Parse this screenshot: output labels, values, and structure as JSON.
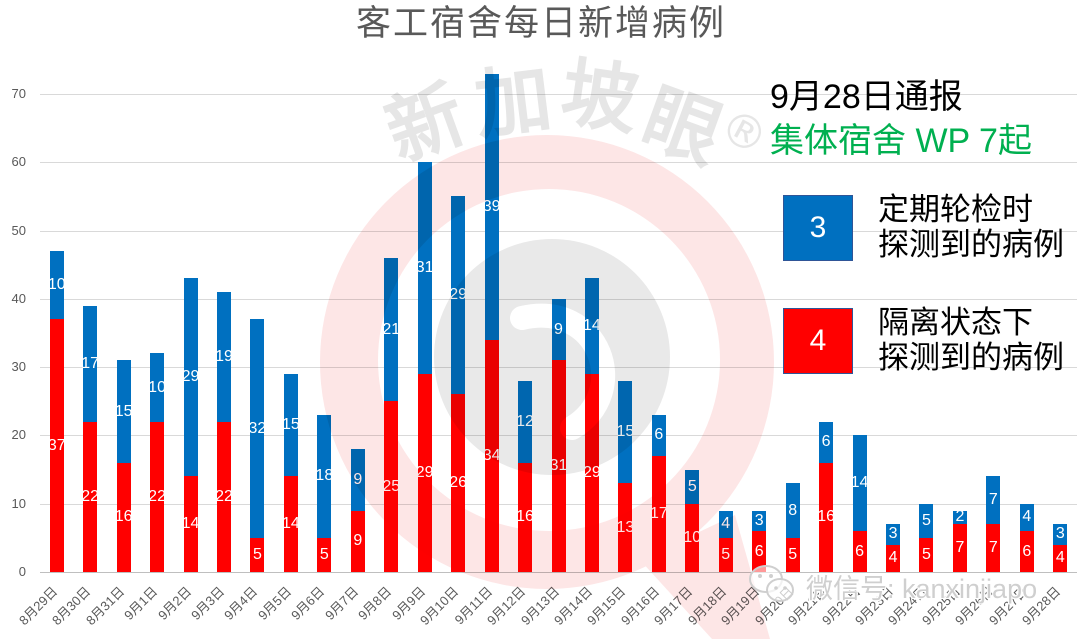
{
  "title": "客工宿舍每日新增病例",
  "annotation": {
    "report_date": "9月28日通报",
    "dorm_summary": "集体宿舍 WP 7起",
    "dorm_summary_color": "#00B050"
  },
  "legend": [
    {
      "count": "3",
      "line1": "定期轮检时",
      "line2": "探测到的病例",
      "color": "#0070C0"
    },
    {
      "count": "4",
      "line1": "隔离状态下",
      "line2": "探测到的病例",
      "color": "#FF0000"
    }
  ],
  "watermark": {
    "brand_chars": [
      "新",
      "加",
      "坡",
      "眼"
    ],
    "registered": "®",
    "wechat_label": "微信号: kanxinjiapo"
  },
  "chart_data": {
    "type": "bar",
    "stacked": true,
    "title": "客工宿舍每日新增病例",
    "xlabel": "",
    "ylabel": "",
    "ylim": [
      0,
      70
    ],
    "yticks": [
      0,
      10,
      20,
      30,
      40,
      50,
      60,
      70
    ],
    "grid": true,
    "legend_position": "right",
    "categories": [
      "8月29日",
      "8月30日",
      "8月31日",
      "9月1日",
      "9月2日",
      "9月3日",
      "9月4日",
      "9月5日",
      "9月6日",
      "9月7日",
      "9月8日",
      "9月9日",
      "9月10日",
      "9月11日",
      "9月12日",
      "9月13日",
      "9月14日",
      "9月15日",
      "9月16日",
      "9月17日",
      "9月18日",
      "9月19日",
      "9月20日",
      "9月21日",
      "9月22日",
      "9月23日",
      "9月24日",
      "9月25日",
      "9月26日",
      "9月27日",
      "9月28日"
    ],
    "series": [
      {
        "name": "隔离状态下探测到的病例",
        "color": "#FF0000",
        "values": [
          37,
          22,
          16,
          22,
          14,
          22,
          5,
          14,
          5,
          9,
          25,
          29,
          26,
          34,
          16,
          31,
          29,
          13,
          17,
          10,
          5,
          6,
          5,
          16,
          6,
          4,
          5,
          7,
          7,
          6,
          4
        ]
      },
      {
        "name": "定期轮检时探测到的病例",
        "color": "#0070C0",
        "values": [
          10,
          17,
          15,
          10,
          29,
          19,
          32,
          15,
          18,
          9,
          21,
          31,
          29,
          39,
          12,
          9,
          14,
          15,
          6,
          5,
          4,
          3,
          8,
          6,
          14,
          3,
          5,
          2,
          7,
          4,
          3
        ]
      }
    ],
    "totals": [
      47,
      39,
      31,
      32,
      43,
      41,
      37,
      29,
      23,
      18,
      46,
      60,
      55,
      73,
      28,
      40,
      43,
      28,
      23,
      15,
      9,
      9,
      13,
      22,
      20,
      7,
      10,
      9,
      14,
      10,
      7
    ]
  }
}
